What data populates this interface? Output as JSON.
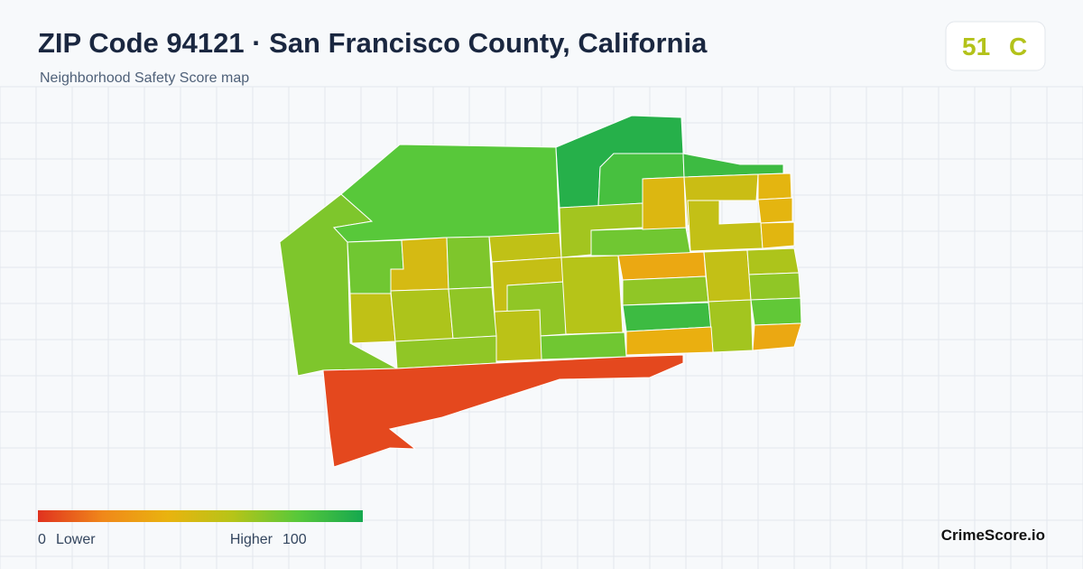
{
  "header": {
    "title": "ZIP Code 94121 · San Francisco County, California",
    "subtitle": "Neighborhood Safety Score map"
  },
  "score": {
    "value": 51,
    "grade": "C",
    "color": "#b3c21a"
  },
  "legend": {
    "min": 0,
    "min_label": "Lower",
    "max_label": "Higher",
    "max": 100,
    "colors": [
      "#e0321f",
      "#f0881a",
      "#e9b30f",
      "#b6c418",
      "#58c83a",
      "#15a84f"
    ]
  },
  "areas": [
    {
      "score": 72
    },
    {
      "score": 80
    },
    {
      "score": 95
    },
    {
      "score": 85
    },
    {
      "score": 88
    },
    {
      "score": 75
    },
    {
      "score": 48
    },
    {
      "score": 72
    },
    {
      "score": 56
    },
    {
      "score": 54
    },
    {
      "score": 68
    },
    {
      "score": 60
    },
    {
      "score": 64
    },
    {
      "score": 75
    },
    {
      "score": 45
    },
    {
      "score": 52
    },
    {
      "score": 55
    },
    {
      "score": 42
    },
    {
      "score": 42
    },
    {
      "score": 43
    },
    {
      "score": 35
    },
    {
      "score": 68
    },
    {
      "score": 88
    },
    {
      "score": 55
    },
    {
      "score": 62
    },
    {
      "score": 68
    },
    {
      "score": 78
    },
    {
      "score": 35
    },
    {
      "score": 64
    },
    {
      "score": 38
    },
    {
      "score": 75
    },
    {
      "score": 58
    },
    {
      "score": 56
    },
    {
      "score": 62
    },
    {
      "score": 68
    },
    {
      "score": 68
    },
    {
      "score": 5
    }
  ],
  "brand": "CrimeScore.io"
}
